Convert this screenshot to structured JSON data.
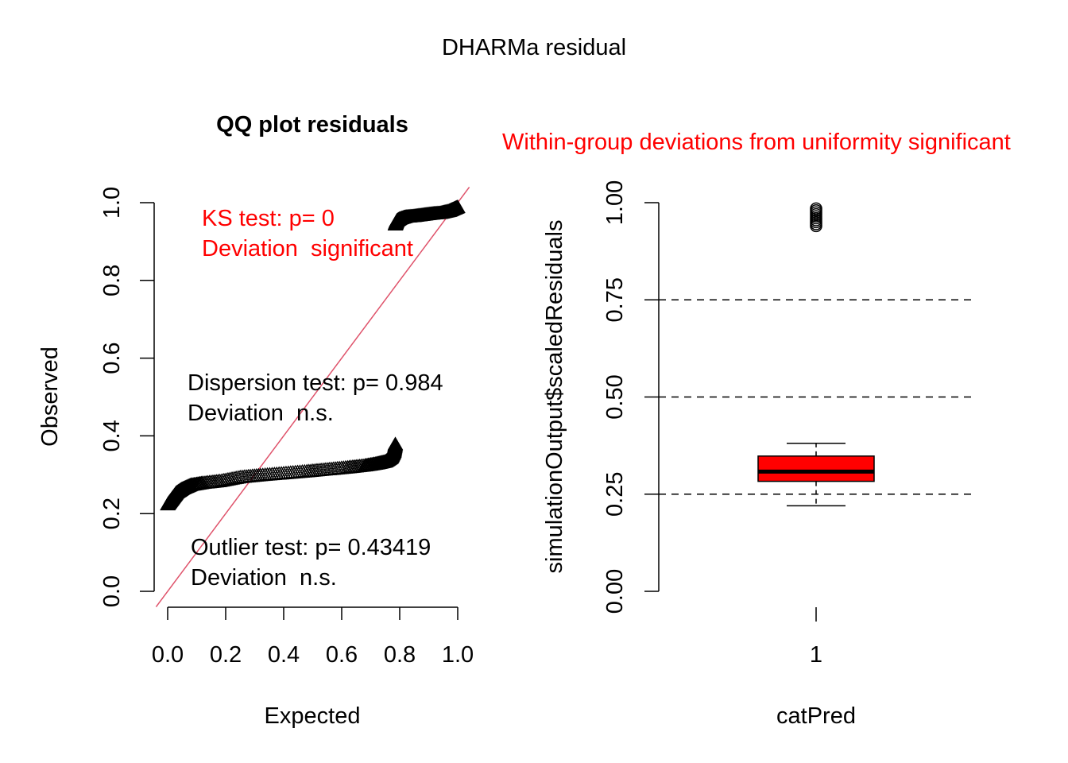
{
  "main_title": "DHARMa residual",
  "colors": {
    "red": "#ff0000",
    "qq_line": "#df536b",
    "black": "#000000",
    "box_fill": "#ff0000"
  },
  "chart_data": [
    {
      "type": "scatter",
      "title": "QQ plot residuals",
      "xlabel": "Expected",
      "ylabel": "Observed",
      "xlim": [
        0,
        1
      ],
      "ylim": [
        0,
        1
      ],
      "xticks": [
        "0.0",
        "0.2",
        "0.4",
        "0.6",
        "0.8",
        "1.0"
      ],
      "yticks": [
        "0.0",
        "0.2",
        "0.4",
        "0.6",
        "0.8",
        "1.0"
      ],
      "marker": "open-triangle",
      "reference_line": {
        "from": [
          0,
          0
        ],
        "to": [
          1,
          1
        ],
        "color": "#df536b"
      },
      "points_lower": {
        "x": [
          0.0,
          0.01,
          0.02,
          0.03,
          0.05,
          0.08,
          0.12,
          0.18,
          0.25,
          0.32,
          0.4,
          0.48,
          0.55,
          0.62,
          0.68,
          0.72,
          0.75,
          0.77,
          0.78,
          0.785
        ],
        "y": [
          0.22,
          0.23,
          0.24,
          0.25,
          0.26,
          0.27,
          0.275,
          0.28,
          0.29,
          0.295,
          0.3,
          0.305,
          0.31,
          0.315,
          0.32,
          0.325,
          0.33,
          0.34,
          0.355,
          0.375
        ]
      },
      "points_upper": {
        "x": [
          0.785,
          0.79,
          0.8,
          0.82,
          0.85,
          0.88,
          0.91,
          0.94,
          0.97,
          0.985,
          1.0
        ],
        "y": [
          0.94,
          0.95,
          0.955,
          0.96,
          0.962,
          0.965,
          0.968,
          0.97,
          0.975,
          0.98,
          0.985
        ]
      },
      "annotations": [
        {
          "lines": [
            "KS test: p= 0",
            "Deviation  significant"
          ],
          "color": "#ff0000"
        },
        {
          "lines": [
            "Dispersion test: p= 0.984",
            "Deviation  n.s."
          ],
          "color": "#000000"
        },
        {
          "lines": [
            "Outlier test: p= 0.43419",
            "Deviation  n.s."
          ],
          "color": "#000000"
        }
      ]
    },
    {
      "type": "box",
      "title": "Within-group deviations from uniformity significant",
      "xlabel": "catPred",
      "ylabel": "simulationOutput$scaledResiduals",
      "categories": [
        "1"
      ],
      "ylim": [
        0,
        1
      ],
      "yticks": [
        "0.00",
        "0.25",
        "0.50",
        "0.75",
        "1.00"
      ],
      "reference_lines": [
        0.25,
        0.5,
        0.75
      ],
      "box": {
        "whisker_low": 0.22,
        "q1": 0.283,
        "median": 0.308,
        "q3": 0.348,
        "whisker_high": 0.381
      },
      "outliers": [
        0.94,
        0.945,
        0.95,
        0.955,
        0.96,
        0.965,
        0.97,
        0.975,
        0.98,
        0.985
      ]
    }
  ]
}
